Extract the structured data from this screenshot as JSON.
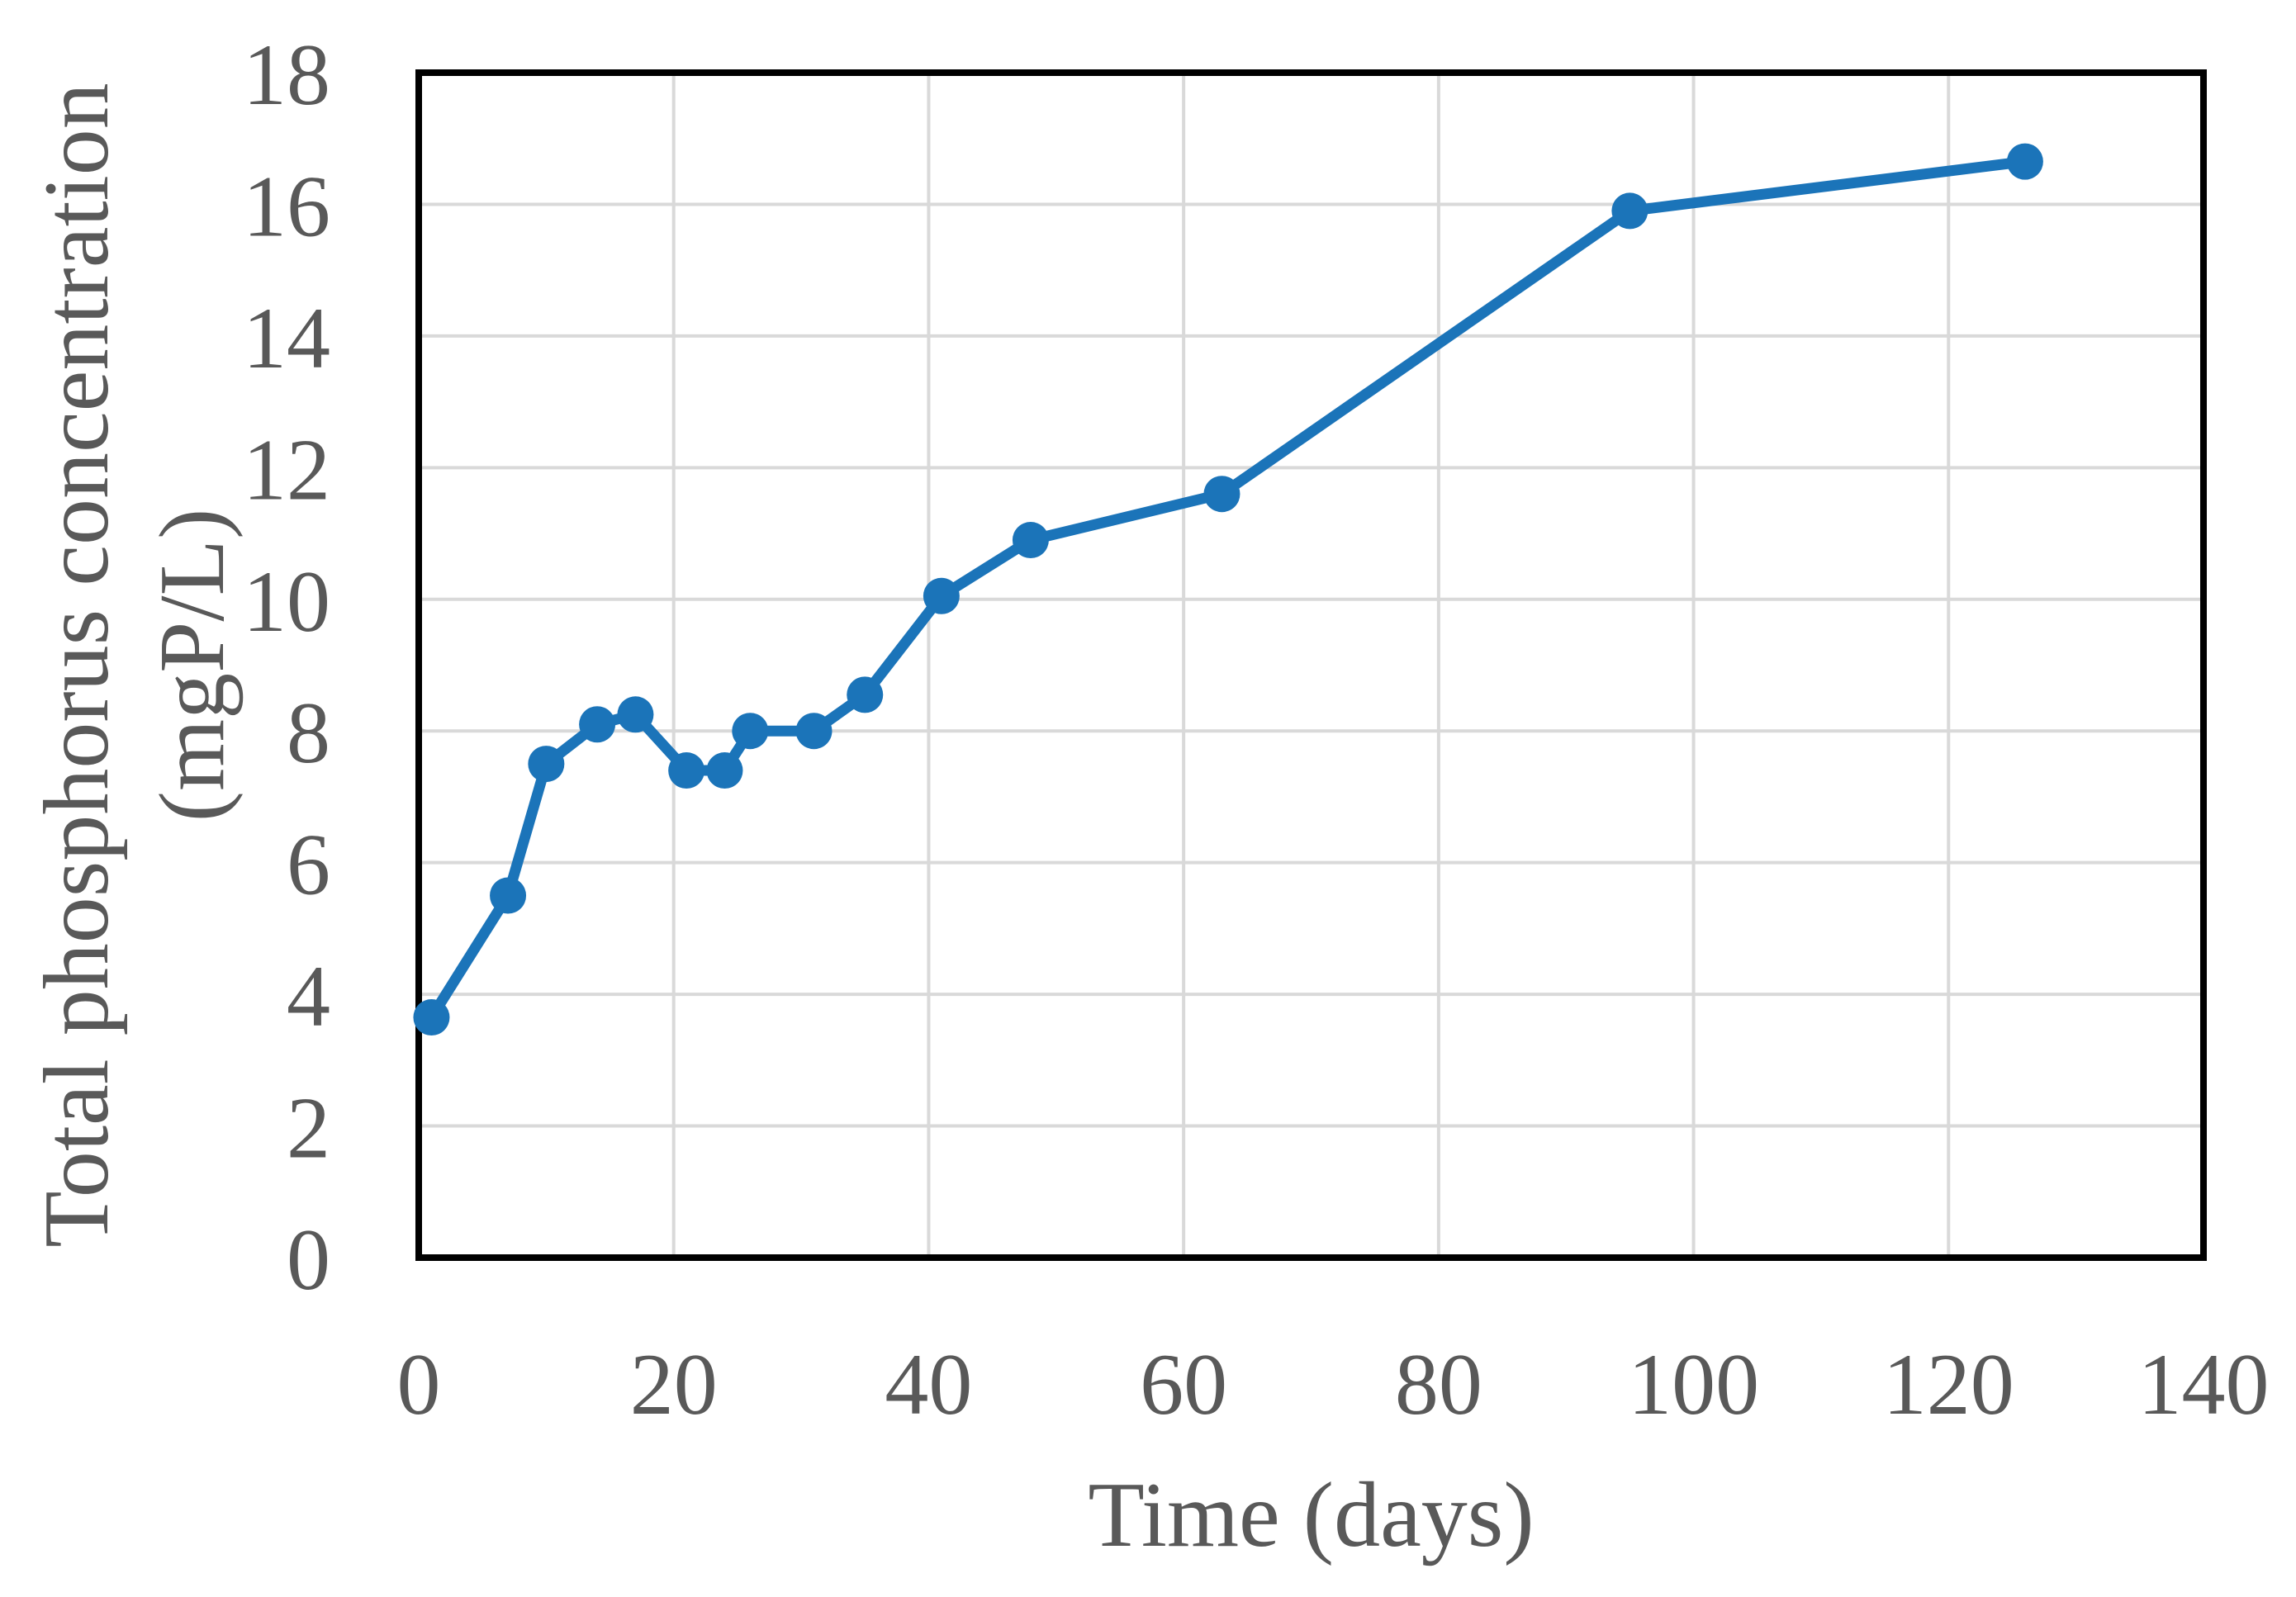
{
  "chart_data": {
    "type": "line",
    "title": "",
    "xlabel": "Time (days)",
    "ylabel_line1": "Total phosphorus concentration",
    "ylabel_line2": "(mgP/L)",
    "series": [
      {
        "name": "Total phosphorus concentration",
        "x": [
          1,
          7,
          10,
          14,
          17,
          21,
          24,
          26,
          31,
          35,
          41,
          48,
          63,
          95,
          126
        ],
        "y": [
          3.65,
          5.5,
          7.5,
          8.1,
          8.25,
          7.4,
          7.4,
          8.0,
          8.0,
          8.55,
          10.05,
          10.9,
          11.6,
          15.9,
          16.65
        ]
      }
    ],
    "xlim": [
      0,
      140
    ],
    "ylim": [
      0,
      18
    ],
    "xticks": [
      0,
      20,
      40,
      60,
      80,
      100,
      120,
      140
    ],
    "yticks": [
      0,
      2,
      4,
      6,
      8,
      10,
      12,
      14,
      16,
      18
    ],
    "grid": true,
    "legend_position": "none",
    "marker": "circle",
    "colors": {
      "line": "#1B74B9",
      "marker": "#1B74B9",
      "gridline": "#D9D9D9",
      "plot_border": "#000000",
      "tick_label": "#595959",
      "axis_title": "#595959",
      "background": "#FFFFFF"
    }
  }
}
